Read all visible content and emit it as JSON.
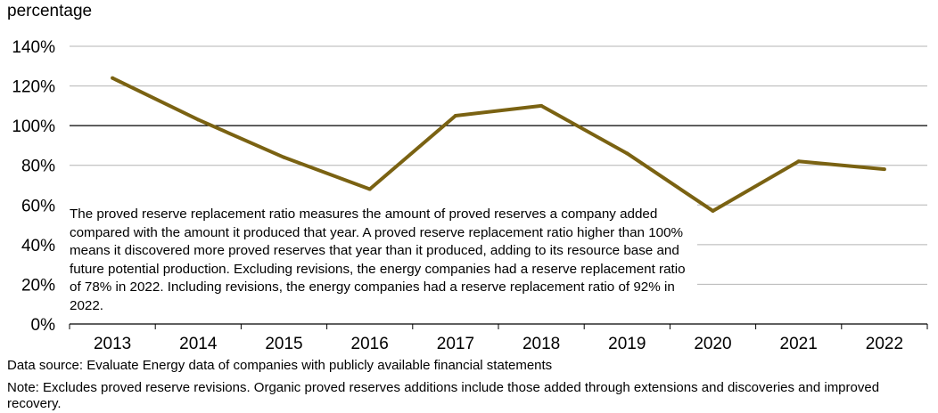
{
  "chart_data": {
    "type": "line",
    "ylabel": "percentage",
    "ylim": [
      0,
      140
    ],
    "yticks": [
      0,
      20,
      40,
      60,
      80,
      100,
      120,
      140
    ],
    "ytick_labels": [
      "0%",
      "20%",
      "40%",
      "60%",
      "80%",
      "100%",
      "120%",
      "140%"
    ],
    "reference_line": 100,
    "categories": [
      "2013",
      "2014",
      "2015",
      "2016",
      "2017",
      "2018",
      "2019",
      "2020",
      "2021",
      "2022"
    ],
    "series": [
      {
        "name": "proved reserve replacement ratio",
        "color": "#7a6212",
        "values": [
          124,
          103,
          84,
          68,
          105,
          110,
          86,
          57,
          82,
          78
        ]
      }
    ],
    "annotation": "The proved reserve replacement ratio measures the amount of proved reserves a company added compared with the amount it produced that year. A proved reserve replacement ratio higher than 100% means it discovered more proved reserves that year than it produced, adding to its resource base and future potential production. Excluding revisions, the energy companies had a reserve replacement ratio of 78% in 2022. Including revisions, the energy companies had a reserve replacement ratio of 92% in 2022."
  },
  "footer": {
    "source": "Data source: Evaluate Energy data of companies with publicly available financial statements",
    "note": "Note: Excludes proved reserve revisions. Organic proved reserves additions include those added through extensions and discoveries and improved recovery."
  }
}
